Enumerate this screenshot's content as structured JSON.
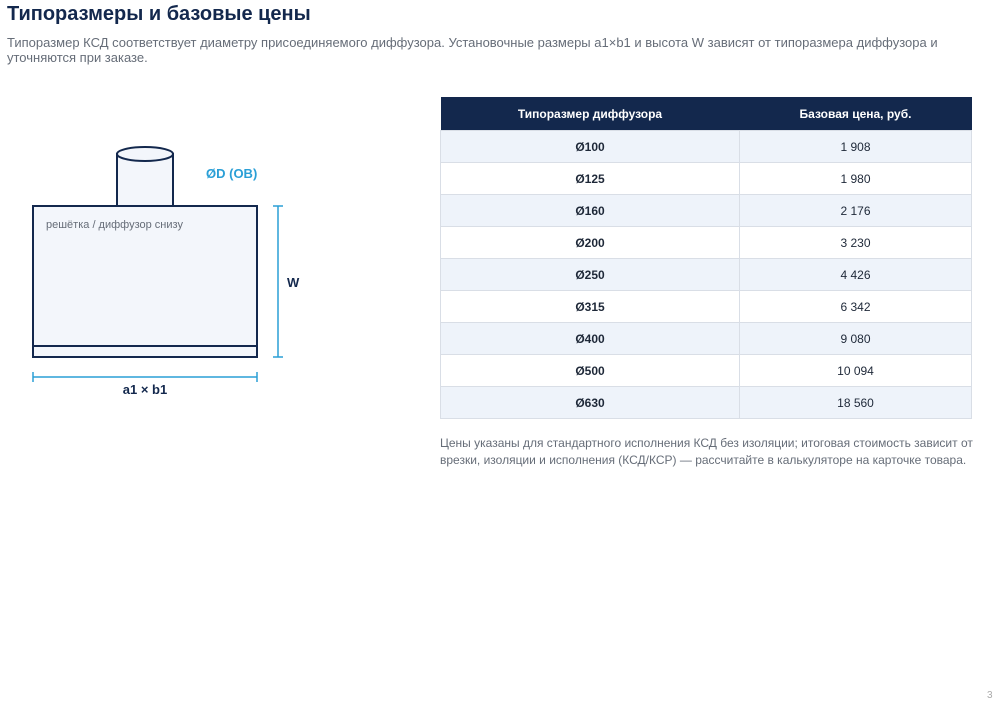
{
  "header": {
    "title": "Типоразмеры и базовые цены",
    "subtitle": "Типоразмер КСД соответствует диаметру присоединяемого диффузора. Установочные размеры a1×b1 и высота W зависят от типоразмера диффузора и уточняются при заказе."
  },
  "diagram": {
    "diameter_label": "ØD (OB)",
    "box_label": "решётка / диффузор снизу",
    "height_label": "W",
    "width_label": "a1 × b1"
  },
  "table": {
    "columns": [
      "Типоразмер диффузора",
      "Базовая цена, руб."
    ],
    "rows": [
      [
        "Ø100",
        "1 908"
      ],
      [
        "Ø125",
        "1 980"
      ],
      [
        "Ø160",
        "2 176"
      ],
      [
        "Ø200",
        "3 230"
      ],
      [
        "Ø250",
        "4 426"
      ],
      [
        "Ø315",
        "6 342"
      ],
      [
        "Ø400",
        "9 080"
      ],
      [
        "Ø500",
        "10 094"
      ],
      [
        "Ø630",
        "18 560"
      ]
    ]
  },
  "note": "Цены указаны для стандартного исполнения КСД без изоляции; итоговая стоимость зависит от врезки, изоляции и исполнения (КСД/КСР) — рассчитайте в калькуляторе на карточке товара.",
  "page_number": "3"
}
